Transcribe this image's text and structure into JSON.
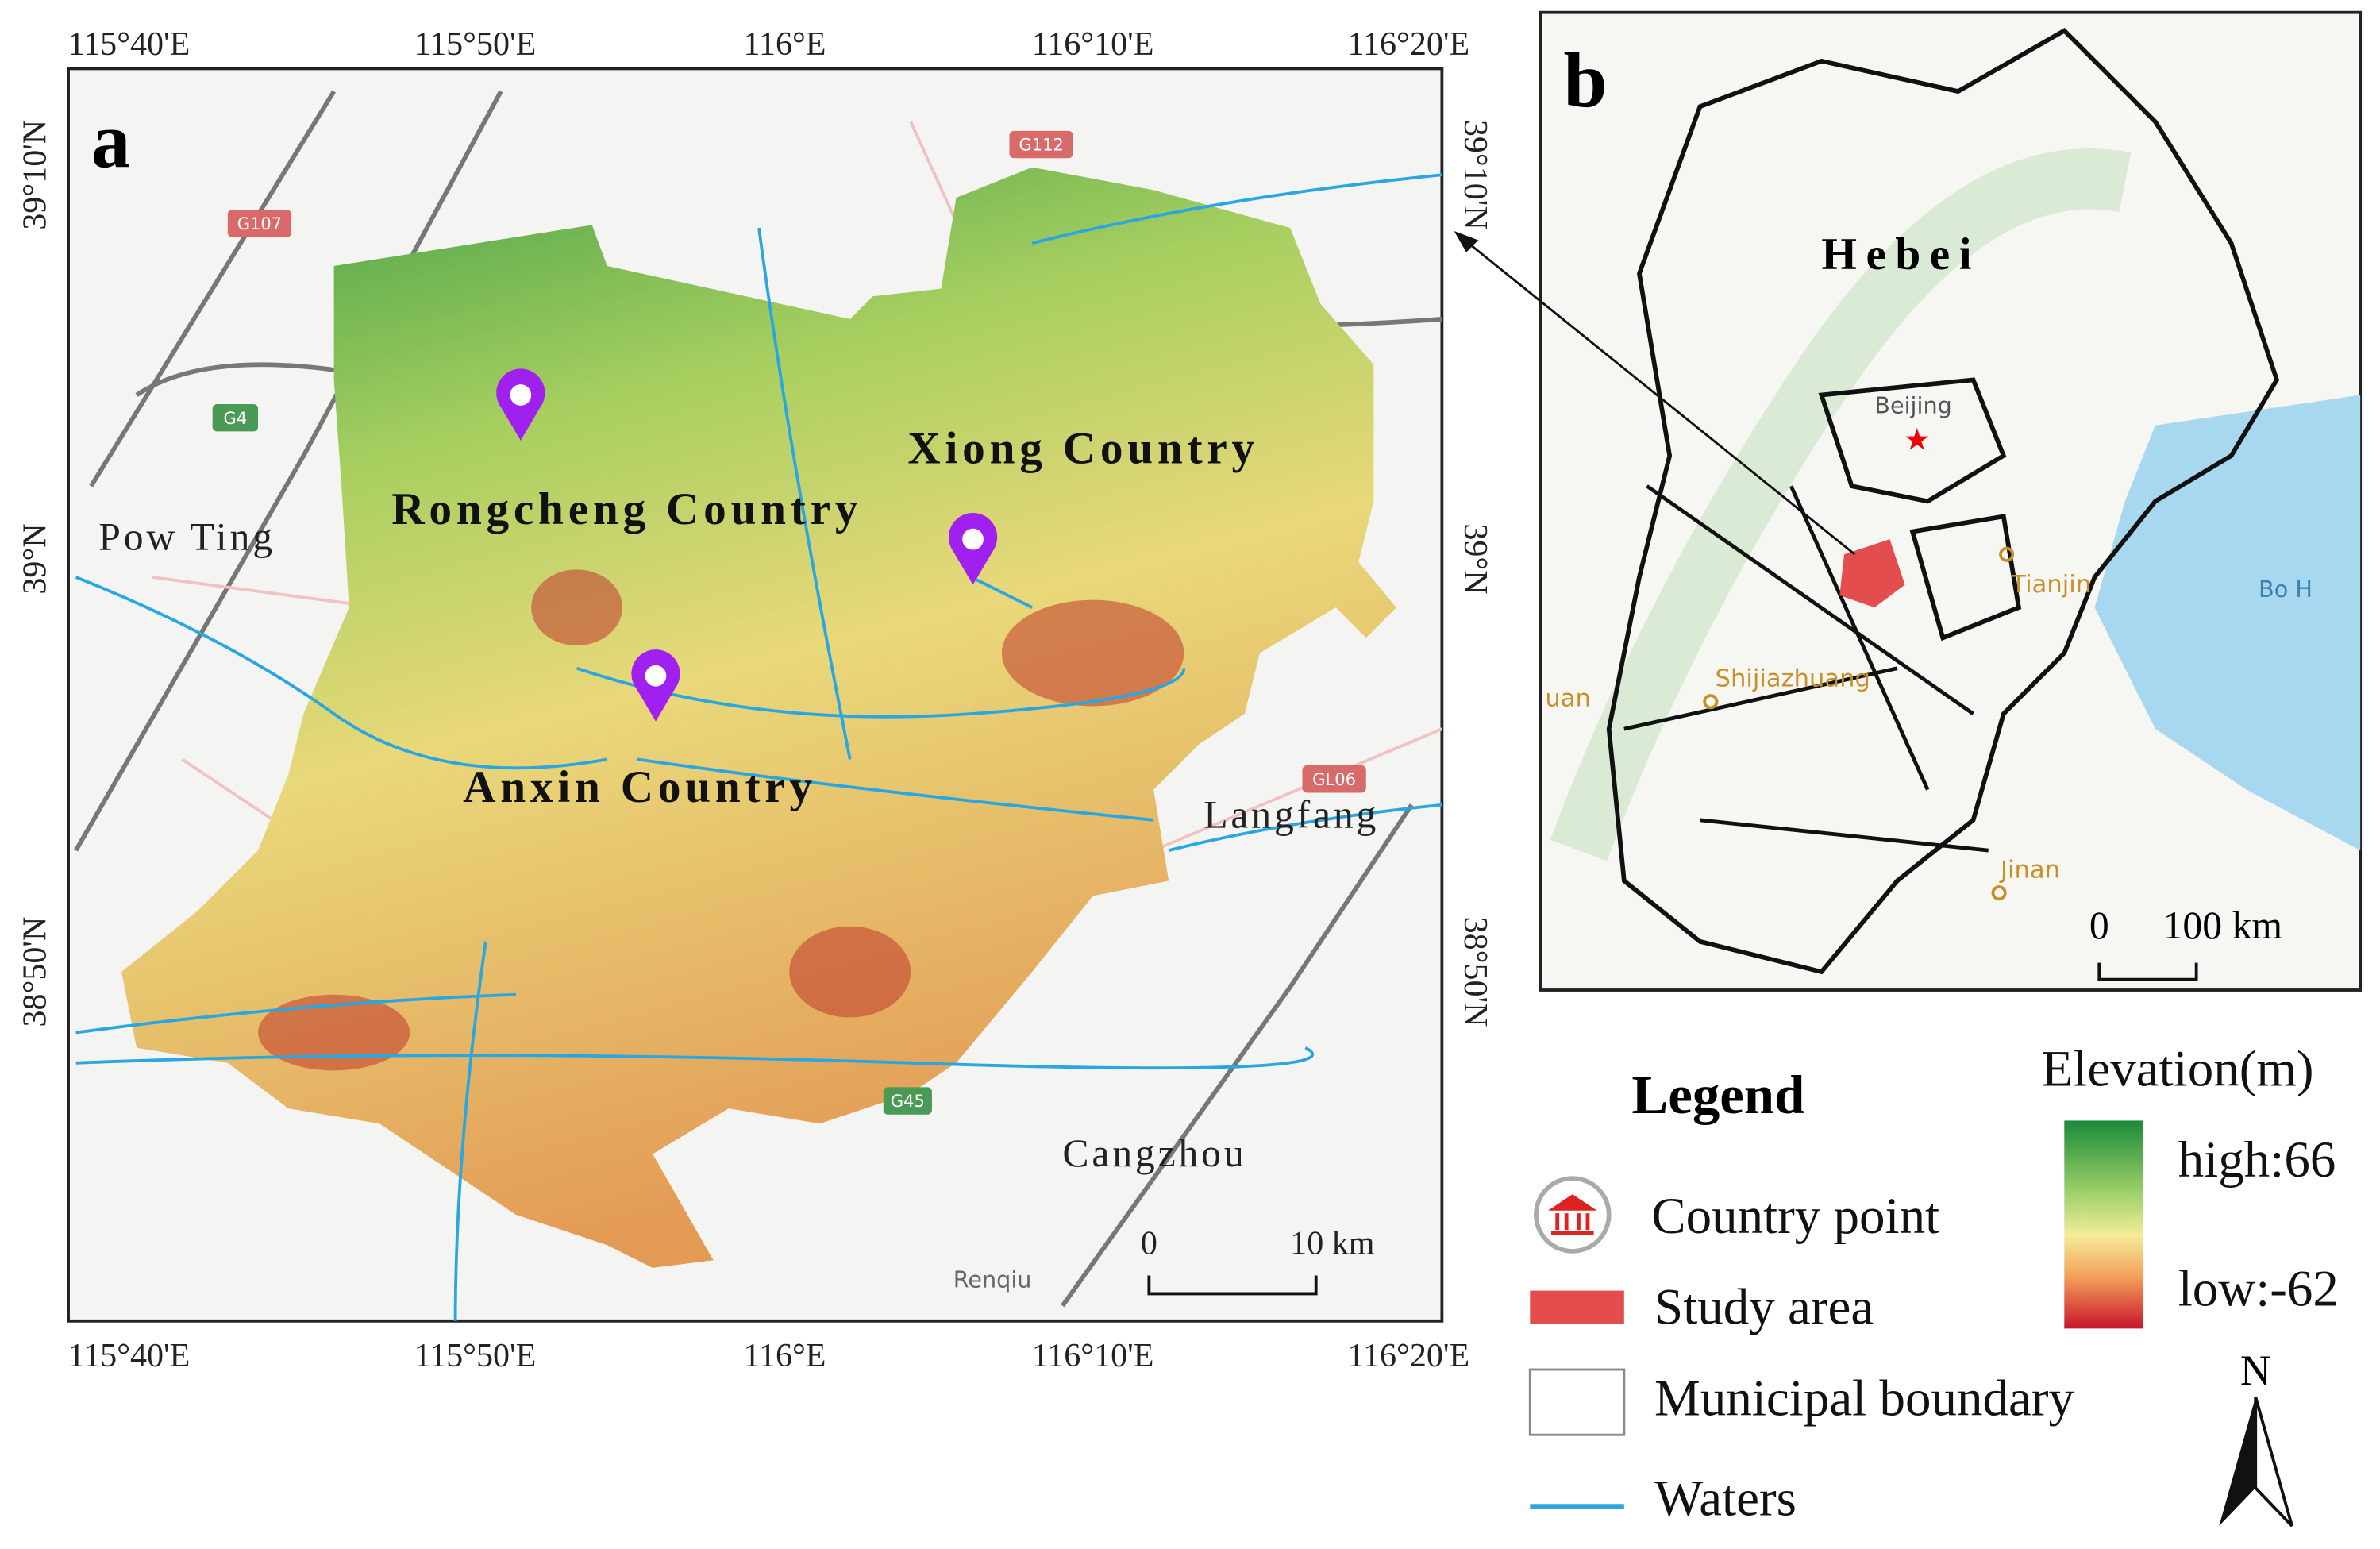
{
  "panel_a": {
    "label": "a",
    "lon_ticks": [
      "115°40'E",
      "115°50'E",
      "116°E",
      "116°10'E",
      "116°20'E"
    ],
    "lat_ticks": [
      "39°10'N",
      "39°N",
      "38°50'N"
    ],
    "places": [
      "Rongcheng Country",
      "Xiong Country",
      "Anxin Country",
      "Pow Ting",
      "Langfang",
      "Cangzhou",
      "Renqiu"
    ],
    "road_labels": [
      "G112",
      "G107",
      "G4",
      "G45",
      "GL06"
    ],
    "scale": {
      "start": "0",
      "end": "10 km"
    }
  },
  "panel_b": {
    "label": "b",
    "places": [
      "Hebei",
      "Beijing",
      "Tianjin",
      "Shijiazhuang",
      "Jinan",
      "Bo H",
      "uan"
    ],
    "scale": {
      "start": "0",
      "end": "100 km"
    }
  },
  "legend": {
    "title": "Legend",
    "items": [
      "Country point",
      "Study area",
      "Municipal boundary",
      "Waters"
    ],
    "elevation": {
      "title": "Elevation(m)",
      "high": "high:66",
      "low": "low:-62"
    },
    "north": "N"
  }
}
